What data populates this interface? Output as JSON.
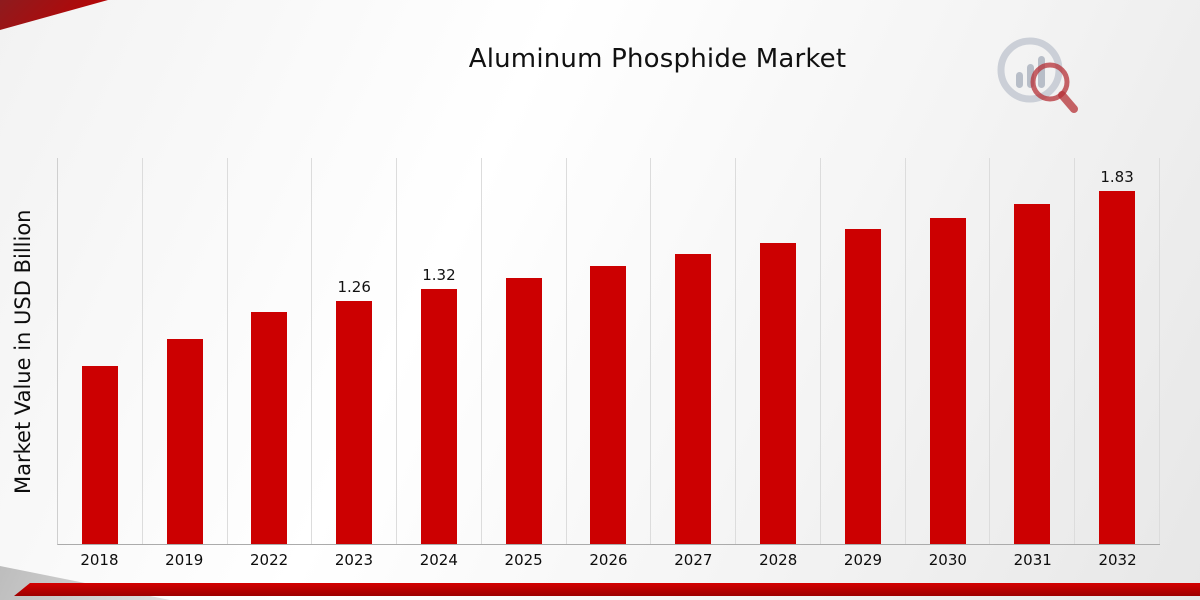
{
  "title": "Aluminum Phosphide Market",
  "y_axis_label": "Market Value in USD Billion",
  "branding": {
    "logo_icon": "market-research-chart-magnifier-logo"
  },
  "colors": {
    "bar": "#CC0001",
    "accent_red": "#C00000",
    "gridline": "#DCDCDC"
  },
  "chart_data": {
    "type": "bar",
    "title": "Aluminum Phosphide Market",
    "xlabel": "",
    "ylabel": "Market Value in USD Billion",
    "categories": [
      "2018",
      "2019",
      "2022",
      "2023",
      "2024",
      "2025",
      "2026",
      "2027",
      "2028",
      "2029",
      "2030",
      "2031",
      "2032"
    ],
    "values": [
      0.92,
      1.06,
      1.2,
      1.26,
      1.32,
      1.38,
      1.44,
      1.5,
      1.56,
      1.63,
      1.69,
      1.76,
      1.83
    ],
    "data_labels": {
      "2023": "1.26",
      "2024": "1.32",
      "2032": "1.83"
    },
    "ylim": [
      0,
      2.0
    ],
    "grid": "vertical",
    "legend": "none",
    "bar_color": "#CC0001"
  }
}
